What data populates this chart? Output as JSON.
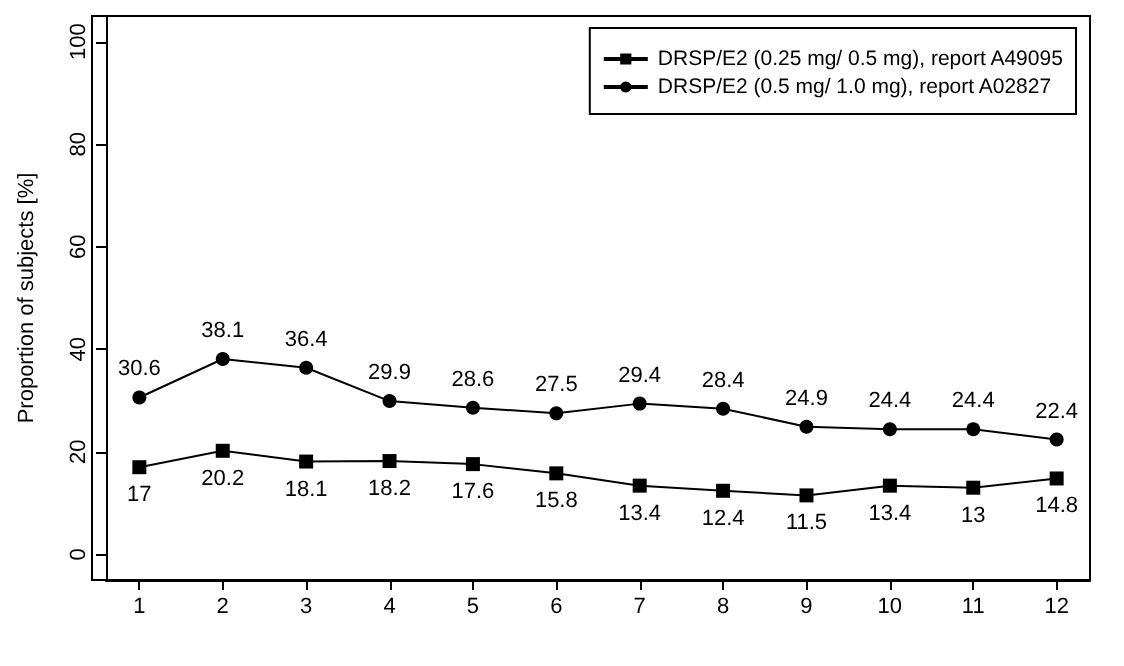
{
  "chart_data": {
    "type": "line",
    "ylabel": "Proportion of subjects [%]",
    "x": [
      1,
      2,
      3,
      4,
      5,
      6,
      7,
      8,
      9,
      10,
      11,
      12
    ],
    "xlim": [
      0.6,
      12.4
    ],
    "xticks": [
      1,
      2,
      3,
      4,
      5,
      6,
      7,
      8,
      9,
      10,
      11,
      12
    ],
    "ylim": [
      -5,
      105
    ],
    "yticks": [
      0,
      20,
      40,
      60,
      80,
      100
    ],
    "grid": false,
    "legend": "top right",
    "data_labels": true,
    "series": [
      {
        "name": "DRSP/E2 (0.25 mg/ 0.5 mg), report A49095",
        "color": "#000000",
        "marker": "square",
        "values": [
          17,
          20.2,
          18.1,
          18.2,
          17.6,
          15.8,
          13.4,
          12.4,
          11.5,
          13.4,
          13,
          14.8
        ]
      },
      {
        "name": "DRSP/E2 (0.5 mg/ 1.0 mg), report A02827",
        "color": "#000000",
        "marker": "circle",
        "values": [
          30.6,
          38.1,
          36.4,
          29.9,
          28.6,
          27.5,
          29.4,
          28.4,
          24.9,
          24.4,
          24.4,
          22.4
        ]
      }
    ]
  }
}
